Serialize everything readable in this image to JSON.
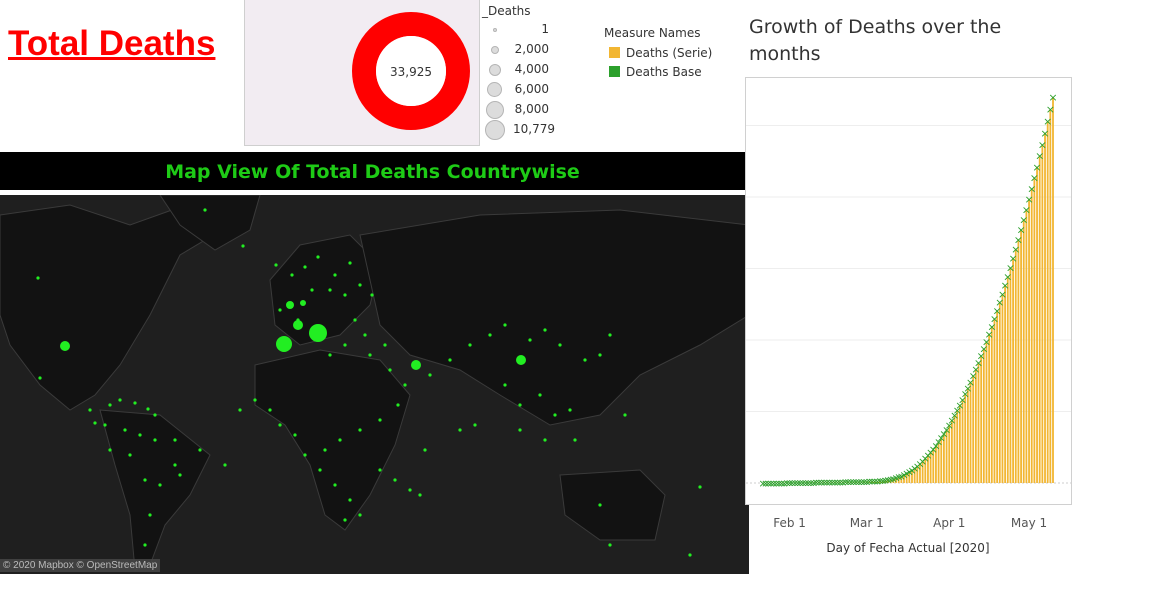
{
  "title": "Total Deaths",
  "donut": {
    "label": "33,925",
    "color": "#ff0000",
    "panel_bg": "#f2ecf2"
  },
  "size_legend": {
    "title": "_Deaths",
    "items": [
      "1",
      "2,000",
      "4,000",
      "6,000",
      "8,000",
      "10,779"
    ]
  },
  "measure_legend": {
    "title": "Measure Names",
    "items": [
      {
        "label": "Deaths (Serie)",
        "color": "#f2b632"
      },
      {
        "label": "Deaths Base",
        "color": "#2ca02c"
      }
    ]
  },
  "map": {
    "header": "Map View Of Total Deaths Countrywise",
    "credit": "© 2020 Mapbox © OpenStreetMap",
    "header_color": "#1ecb16",
    "marker_color": "#22ee22"
  },
  "chart_data": {
    "type": "bar",
    "title": "Growth of Deaths over the months",
    "xlabel": "Day of Fecha Actual [2020]",
    "ylabel": "",
    "x_ticks": [
      "Feb 1",
      "Mar 1",
      "Apr 1",
      "May 1"
    ],
    "series": [
      {
        "name": "Deaths (Serie)",
        "color": "#f2b632"
      },
      {
        "name": "Deaths Base",
        "color": "#2ca02c",
        "marker": "x"
      }
    ],
    "start": "2020-01-22",
    "end": "2020-05-10",
    "daily_values": [
      1,
      1,
      2,
      2,
      3,
      3,
      4,
      5,
      6,
      7,
      8,
      9,
      10,
      11,
      12,
      13,
      14,
      16,
      17,
      18,
      20,
      21,
      22,
      24,
      25,
      26,
      27,
      28,
      29,
      30,
      31,
      32,
      33,
      34,
      36,
      37,
      38,
      40,
      42,
      44,
      46,
      48,
      52,
      56,
      62,
      70,
      80,
      92,
      105,
      120,
      138,
      160,
      185,
      215,
      250,
      290,
      335,
      385,
      440,
      500,
      565,
      635,
      710,
      790,
      875,
      965,
      1060,
      1160,
      1265,
      1375,
      1490,
      1610,
      1735,
      1865,
      2000,
      2140,
      2285,
      2435,
      2590,
      2750,
      2915,
      3085,
      3260,
      3440,
      3625,
      3815,
      4010,
      4210,
      4415,
      4625,
      4840,
      5060,
      5285,
      5515,
      5750,
      5990,
      6235,
      6485,
      6740,
      7000,
      7265,
      7535,
      7810,
      8090,
      8375,
      8665,
      8960,
      9260,
      9565,
      9875
    ]
  }
}
